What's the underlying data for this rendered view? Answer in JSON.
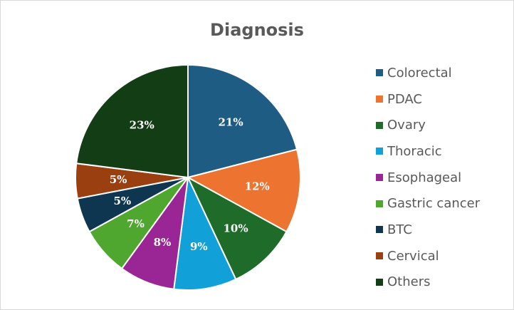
{
  "chart_data": {
    "type": "pie",
    "title": "Diagnosis",
    "legend_position": "right",
    "slices": [
      {
        "name": "Colorectal",
        "value": 21,
        "label": "21%",
        "color": "#1f5c84"
      },
      {
        "name": "PDAC",
        "value": 12,
        "label": "12%",
        "color": "#ed7331"
      },
      {
        "name": "Ovary",
        "value": 10,
        "label": "10%",
        "color": "#1e6b2a"
      },
      {
        "name": "Thoracic",
        "value": 9,
        "label": "9%",
        "color": "#12a0d8"
      },
      {
        "name": "Esophageal",
        "value": 8,
        "label": "8%",
        "color": "#9a2594"
      },
      {
        "name": "Gastric cancer",
        "value": 7,
        "label": "7%",
        "color": "#4fa72f"
      },
      {
        "name": "BTC",
        "value": 5,
        "label": "5%",
        "color": "#0e3651"
      },
      {
        "name": "Cervical",
        "value": 5,
        "label": "5%",
        "color": "#9a3f10"
      },
      {
        "name": "Others",
        "value": 23,
        "label": "23%",
        "color": "#123d15"
      }
    ]
  }
}
